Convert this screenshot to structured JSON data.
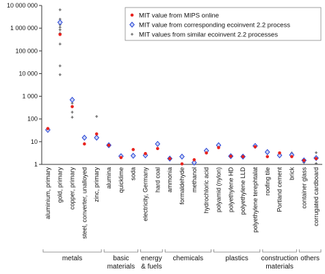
{
  "chart_data": {
    "type": "scatter",
    "y_scale": "log",
    "ylim": [
      1,
      10000000
    ],
    "y_ticks": [
      {
        "value": 1,
        "label": "1"
      },
      {
        "value": 10,
        "label": "10"
      },
      {
        "value": 100,
        "label": "100"
      },
      {
        "value": 1000,
        "label": "1 000"
      },
      {
        "value": 10000,
        "label": "10 000"
      },
      {
        "value": 100000,
        "label": "100 000"
      },
      {
        "value": 1000000,
        "label": "1 000 000"
      },
      {
        "value": 10000000,
        "label": "10 000 000"
      }
    ],
    "grid": false,
    "legend_position": "top-right",
    "categories": [
      "aluminium, primary",
      "gold, primary",
      "copper, primary",
      "steel, converter, unalloyed",
      "zinc, primary",
      "alumina",
      "quicklime",
      "soda",
      "electricity, Germany",
      "hard coal",
      "ammonia",
      "formaldehyde",
      "methanol",
      "hydrochloric acid",
      "polyamid (nylon)",
      "polyethylene HD",
      "polyethylene LLD",
      "polyethylene terephtalat",
      "roofing tile",
      "Portland cement",
      "brick",
      "container glass",
      "corrugated cardboard"
    ],
    "groups": [
      {
        "label": "metals",
        "from": 0,
        "to": 4
      },
      {
        "label": "basic materials",
        "lines": [
          "basic",
          "materials"
        ],
        "from": 5,
        "to": 7
      },
      {
        "label": "energy & fuels",
        "lines": [
          "energy",
          "& fuels"
        ],
        "from": 8,
        "to": 9
      },
      {
        "label": "chemicals",
        "from": 10,
        "to": 13
      },
      {
        "label": "plastics",
        "from": 14,
        "to": 17
      },
      {
        "label": "construction materials",
        "lines": [
          "construction",
          "materials"
        ],
        "from": 18,
        "to": 20
      },
      {
        "label": "others",
        "from": 21,
        "to": 22
      }
    ],
    "series": [
      {
        "name": "MIT value from MIPS online",
        "marker": "dot",
        "color": "#e8231e",
        "values": [
          38,
          530000,
          350,
          8,
          22,
          7,
          2,
          4.5,
          3,
          5,
          1.8,
          1.05,
          1.6,
          3.2,
          5.5,
          2.3,
          2.2,
          6,
          2.2,
          3.2,
          2.2,
          1.5,
          1.8
        ]
      },
      {
        "name": "MIT value from corresponding ecoinvent 2.2 process",
        "marker": "diamond",
        "color": "#2340d4",
        "values": [
          33,
          1800000,
          700,
          15,
          15,
          7,
          2.3,
          2.4,
          2.5,
          8,
          1.8,
          2.2,
          1.2,
          4,
          7,
          2.3,
          2.2,
          6.5,
          3.5,
          2.5,
          2.6,
          1.5,
          1.9
        ]
      },
      {
        "name": "MIT values from similar ecoinvent 2.2 processes",
        "marker": "plus",
        "color": "#555555",
        "points": [
          {
            "category": 1,
            "values": [
              6500000,
              2500000,
              1400000,
              1100000,
              850000,
              600000,
              200000,
              22000,
              9000
            ]
          },
          {
            "category": 2,
            "values": [
              500,
              200,
              120
            ]
          },
          {
            "category": 4,
            "values": [
              130
            ]
          },
          {
            "category": 8,
            "values": [
              2.6
            ]
          },
          {
            "category": 12,
            "values": [
              1.3
            ]
          },
          {
            "category": 14,
            "values": [
              6
            ]
          },
          {
            "category": 20,
            "values": [
              3.2
            ]
          },
          {
            "category": 21,
            "values": [
              1.2
            ]
          },
          {
            "category": 22,
            "values": [
              3.3,
              1.1
            ]
          }
        ]
      }
    ]
  }
}
